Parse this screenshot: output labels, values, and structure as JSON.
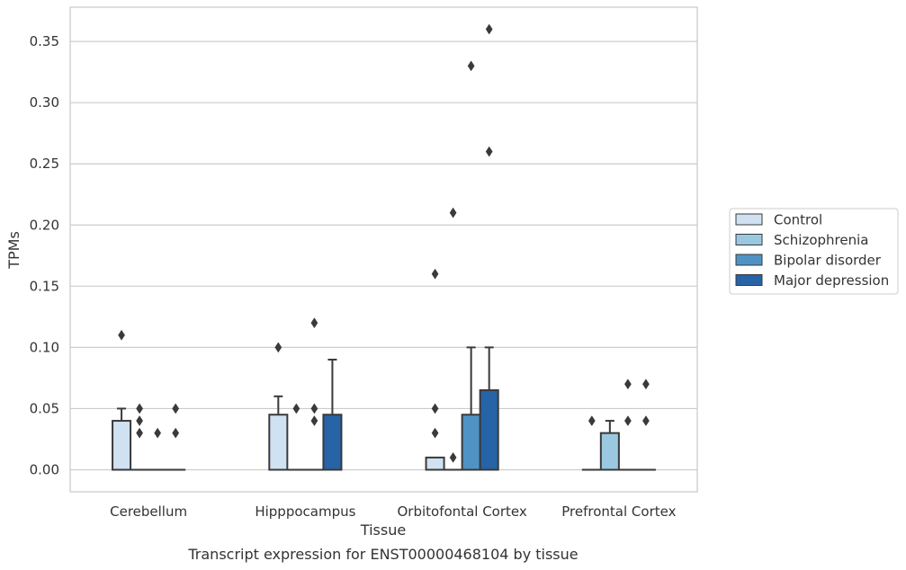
{
  "chart_data": {
    "type": "boxplot",
    "title": "",
    "caption": "Transcript expression for ENST00000468104 by tissue",
    "xlabel": "Tissue",
    "ylabel": "TPMs",
    "ylim": [
      -0.018,
      0.378
    ],
    "yticks": [
      0.0,
      0.05,
      0.1,
      0.15,
      0.2,
      0.25,
      0.3,
      0.35
    ],
    "ytick_labels": [
      "0.00",
      "0.05",
      "0.10",
      "0.15",
      "0.20",
      "0.25",
      "0.30",
      "0.35"
    ],
    "grid": "horizontal",
    "legend_position": "right",
    "categories": [
      "Cerebellum",
      "Hipppocampus",
      "Orbitofontal Cortex",
      "Prefrontal Cortex"
    ],
    "series": [
      {
        "name": "Control",
        "color": "#d0e1f2",
        "boxes": [
          {
            "q1": 0.0,
            "median": 0.0,
            "q3": 0.04,
            "whisker_low": 0.0,
            "whisker_high": 0.05,
            "outliers": [
              0.11
            ]
          },
          {
            "q1": 0.0,
            "median": 0.0,
            "q3": 0.045,
            "whisker_low": 0.0,
            "whisker_high": 0.06,
            "outliers": [
              0.1
            ]
          },
          {
            "q1": 0.0,
            "median": 0.0,
            "q3": 0.01,
            "whisker_low": 0.0,
            "whisker_high": 0.01,
            "outliers": [
              0.05,
              0.03,
              0.16
            ]
          },
          {
            "q1": 0.0,
            "median": 0.0,
            "q3": 0.0,
            "whisker_low": 0.0,
            "whisker_high": 0.0,
            "outliers": [
              0.04
            ]
          }
        ]
      },
      {
        "name": "Schizophrenia",
        "color": "#9ac8e0",
        "boxes": [
          {
            "q1": 0.0,
            "median": 0.0,
            "q3": 0.0,
            "whisker_low": 0.0,
            "whisker_high": 0.0,
            "outliers": [
              0.05,
              0.04,
              0.03
            ]
          },
          {
            "q1": 0.0,
            "median": 0.0,
            "q3": 0.0,
            "whisker_low": 0.0,
            "whisker_high": 0.0,
            "outliers": [
              0.05
            ]
          },
          {
            "q1": 0.0,
            "median": 0.0,
            "q3": 0.0,
            "whisker_low": 0.0,
            "whisker_high": 0.0,
            "outliers": [
              0.21,
              0.01
            ]
          },
          {
            "q1": 0.0,
            "median": 0.0,
            "q3": 0.03,
            "whisker_low": 0.0,
            "whisker_high": 0.04,
            "outliers": []
          }
        ]
      },
      {
        "name": "Bipolar disorder",
        "color": "#4f93c4",
        "boxes": [
          {
            "q1": 0.0,
            "median": 0.0,
            "q3": 0.0,
            "whisker_low": 0.0,
            "whisker_high": 0.0,
            "outliers": [
              0.03
            ]
          },
          {
            "q1": 0.0,
            "median": 0.0,
            "q3": 0.0,
            "whisker_low": 0.0,
            "whisker_high": 0.0,
            "outliers": [
              0.12,
              0.05,
              0.04
            ]
          },
          {
            "q1": 0.0,
            "median": 0.0,
            "q3": 0.045,
            "whisker_low": 0.0,
            "whisker_high": 0.1,
            "outliers": [
              0.33
            ]
          },
          {
            "q1": 0.0,
            "median": 0.0,
            "q3": 0.0,
            "whisker_low": 0.0,
            "whisker_high": 0.0,
            "outliers": [
              0.07,
              0.04
            ]
          }
        ]
      },
      {
        "name": "Major depression",
        "color": "#2663a7",
        "boxes": [
          {
            "q1": 0.0,
            "median": 0.0,
            "q3": 0.0,
            "whisker_low": 0.0,
            "whisker_high": 0.0,
            "outliers": [
              0.05,
              0.03
            ]
          },
          {
            "q1": 0.0,
            "median": 0.0,
            "q3": 0.045,
            "whisker_low": 0.0,
            "whisker_high": 0.09,
            "outliers": []
          },
          {
            "q1": 0.0,
            "median": 0.0,
            "q3": 0.065,
            "whisker_low": 0.0,
            "whisker_high": 0.1,
            "outliers": [
              0.36,
              0.26
            ]
          },
          {
            "q1": 0.0,
            "median": 0.0,
            "q3": 0.0,
            "whisker_low": 0.0,
            "whisker_high": 0.0,
            "outliers": [
              0.07,
              0.04
            ]
          }
        ]
      }
    ],
    "colors": {
      "grid": "#cccccc",
      "frame": "#cccccc",
      "box_edge": "#3a3a3a",
      "text": "#333333"
    }
  }
}
